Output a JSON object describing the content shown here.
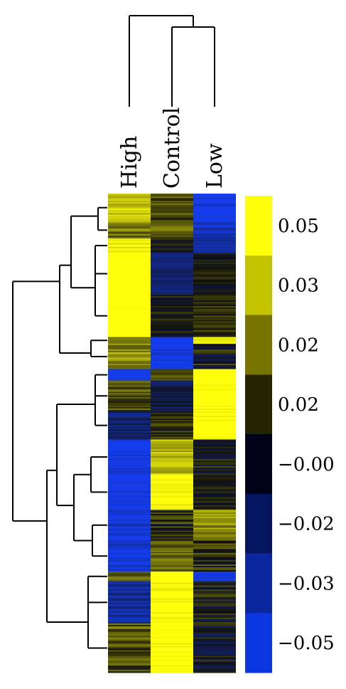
{
  "chart_data": {
    "type": "heatmap",
    "columns": [
      "High",
      "Control",
      "Low"
    ],
    "column_dendrogram": {
      "first_merge": [
        "Control",
        "Low"
      ],
      "then_join": "High"
    },
    "row_clusters": [
      {
        "rows": 20,
        "values": [
          0.04,
          0.01,
          -0.05
        ],
        "noise": 0.01
      },
      {
        "rows": 12,
        "values": [
          0.02,
          0.015,
          -0.04
        ],
        "noise": 0.012
      },
      {
        "rows": 10,
        "values": [
          0.05,
          0.0,
          -0.03
        ],
        "noise": 0.006
      },
      {
        "rows": 30,
        "values": [
          0.06,
          -0.02,
          0.0
        ],
        "noise": 0.006
      },
      {
        "rows": 30,
        "values": [
          0.06,
          0.0,
          0.005
        ],
        "noise": 0.007
      },
      {
        "rows": 5,
        "values": [
          0.02,
          -0.05,
          0.05
        ],
        "noise": 0.005
      },
      {
        "rows": 18,
        "values": [
          0.025,
          -0.05,
          0.0
        ],
        "noise": 0.012
      },
      {
        "rows": 8,
        "values": [
          -0.05,
          0.01,
          0.06
        ],
        "noise": 0.008
      },
      {
        "rows": 22,
        "values": [
          0.012,
          -0.01,
          0.06
        ],
        "noise": 0.01
      },
      {
        "rows": 20,
        "values": [
          -0.02,
          0.005,
          0.06
        ],
        "noise": 0.01
      },
      {
        "rows": 25,
        "values": [
          -0.05,
          0.035,
          0.0
        ],
        "noise": 0.01
      },
      {
        "rows": 25,
        "values": [
          -0.05,
          0.055,
          0.0
        ],
        "noise": 0.007
      },
      {
        "rows": 22,
        "values": [
          -0.045,
          0.005,
          0.025
        ],
        "noise": 0.012
      },
      {
        "rows": 22,
        "values": [
          -0.045,
          0.015,
          0.005
        ],
        "noise": 0.01
      },
      {
        "rows": 7,
        "values": [
          0.015,
          0.06,
          -0.05
        ],
        "noise": 0.008
      },
      {
        "rows": 30,
        "values": [
          -0.03,
          0.06,
          0.0
        ],
        "noise": 0.012
      },
      {
        "rows": 35,
        "values": [
          0.012,
          0.06,
          -0.005
        ],
        "noise": 0.012
      }
    ],
    "color_scale": [
      {
        "label": "0.05",
        "color": "#ffff0a"
      },
      {
        "label": "0.03",
        "color": "#c3c300"
      },
      {
        "label": "0.02",
        "color": "#777300"
      },
      {
        "label": "0.02",
        "color": "#242400"
      },
      {
        "label": "−0.00",
        "color": "#000016"
      },
      {
        "label": "−0.02",
        "color": "#06155f"
      },
      {
        "label": "−0.03",
        "color": "#0a27a0"
      },
      {
        "label": "−0.05",
        "color": "#0a37e0"
      }
    ]
  }
}
